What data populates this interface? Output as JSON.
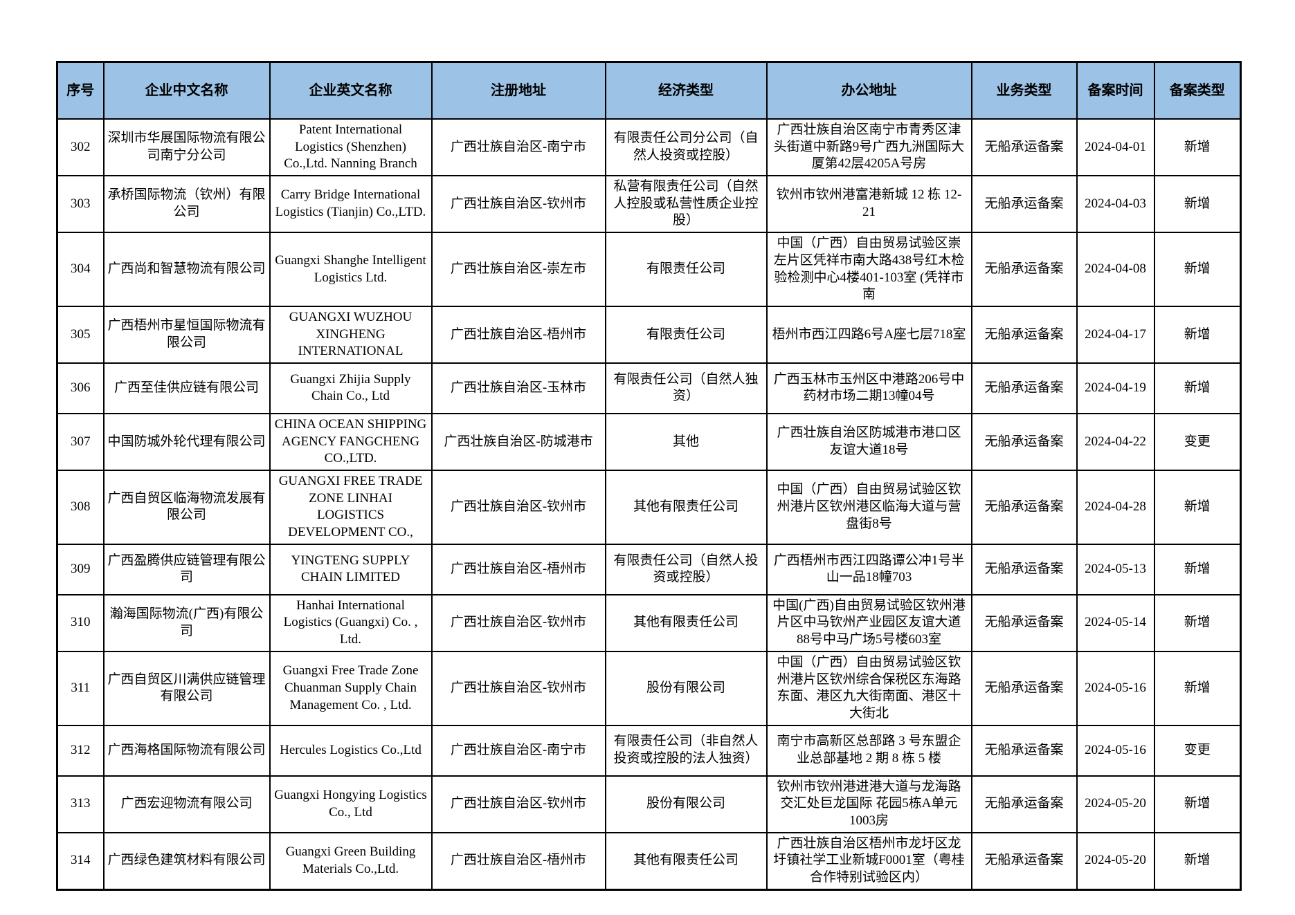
{
  "colors": {
    "header_bg": "#9CC2E5",
    "border": "#000000",
    "text": "#000000",
    "page_bg": "#FFFFFF"
  },
  "table": {
    "columns": [
      {
        "key": "index",
        "label": "序号"
      },
      {
        "key": "cn-name",
        "label": "企业中文名称"
      },
      {
        "key": "en-name",
        "label": "企业英文名称"
      },
      {
        "key": "registered-address",
        "label": "注册地址"
      },
      {
        "key": "economic-type",
        "label": "经济类型"
      },
      {
        "key": "office-address",
        "label": "办公地址"
      },
      {
        "key": "business-type",
        "label": "业务类型"
      },
      {
        "key": "record-date",
        "label": "备案时间"
      },
      {
        "key": "record-type",
        "label": "备案类型"
      }
    ],
    "rows": [
      [
        "302",
        "深圳市华展国际物流有限公司南宁分公司",
        "Patent International Logistics (Shenzhen) Co.,Ltd. Nanning Branch",
        "广西壮族自治区-南宁市",
        "有限责任公司分公司（自然人投资或控股）",
        "广西壮族自治区南宁市青秀区津头街道中新路9号广西九洲国际大厦第42层4205A号房",
        "无船承运备案",
        "2024-04-01",
        "新增"
      ],
      [
        "303",
        "承桥国际物流（钦州）有限公司",
        "Carry Bridge International Logistics (Tianjin) Co.,LTD.",
        "广西壮族自治区-钦州市",
        "私营有限责任公司（自然人控股或私营性质企业控股）",
        "钦州市钦州港富港新城 12 栋 12-21",
        "无船承运备案",
        "2024-04-03",
        "新增"
      ],
      [
        "304",
        "广西尚和智慧物流有限公司",
        "Guangxi Shanghe Intelligent Logistics Ltd.",
        "广西壮族自治区-崇左市",
        "有限责任公司",
        "中国（广西）自由贸易试验区崇左片区凭祥市南大路438号红木检验检测中心4楼401-103室 (凭祥市南",
        "无船承运备案",
        "2024-04-08",
        "新增"
      ],
      [
        "305",
        "广西梧州市星恒国际物流有限公司",
        "GUANGXI WUZHOU XINGHENG INTERNATIONAL",
        "广西壮族自治区-梧州市",
        "有限责任公司",
        "梧州市西江四路6号A座七层718室",
        "无船承运备案",
        "2024-04-17",
        "新增"
      ],
      [
        "306",
        "广西至佳供应链有限公司",
        "Guangxi Zhijia Supply Chain Co., Ltd",
        "广西壮族自治区-玉林市",
        "有限责任公司（自然人独资）",
        "广西玉林市玉州区中港路206号中药材市场二期13幢04号",
        "无船承运备案",
        "2024-04-19",
        "新增"
      ],
      [
        "307",
        "中国防城外轮代理有限公司",
        "CHINA OCEAN SHIPPING AGENCY FANGCHENG CO.,LTD.",
        "广西壮族自治区-防城港市",
        "其他",
        "广西壮族自治区防城港市港口区友谊大道18号",
        "无船承运备案",
        "2024-04-22",
        "变更"
      ],
      [
        "308",
        "广西自贸区临海物流发展有限公司",
        "GUANGXI FREE TRADE ZONE LINHAI LOGISTICS DEVELOPMENT CO.,",
        "广西壮族自治区-钦州市",
        "其他有限责任公司",
        "中国（广西）自由贸易试验区钦州港片区钦州港区临海大道与营盘街8号",
        "无船承运备案",
        "2024-04-28",
        "新增"
      ],
      [
        "309",
        "广西盈腾供应链管理有限公司",
        "YINGTENG SUPPLY CHAIN LIMITED",
        "广西壮族自治区-梧州市",
        "有限责任公司（自然人投资或控股）",
        "广西梧州市西江四路谭公冲1号半山一品18幢703",
        "无船承运备案",
        "2024-05-13",
        "新增"
      ],
      [
        "310",
        "瀚海国际物流(广西)有限公司",
        "Hanhai International Logistics (Guangxi) Co. , Ltd.",
        "广西壮族自治区-钦州市",
        "其他有限责任公司",
        "中国(广西)自由贸易试验区钦州港片区中马钦州产业园区友谊大道88号中马广场5号楼603室",
        "无船承运备案",
        "2024-05-14",
        "新增"
      ],
      [
        "311",
        "广西自贸区川满供应链管理有限公司",
        "Guangxi Free Trade Zone Chuanman Supply Chain Management Co. , Ltd.",
        "广西壮族自治区-钦州市",
        "股份有限公司",
        "中国（广西）自由贸易试验区钦州港片区钦州综合保税区东海路东面、港区九大街南面、港区十大街北",
        "无船承运备案",
        "2024-05-16",
        "新增"
      ],
      [
        "312",
        "广西海格国际物流有限公司",
        "Hercules Logistics Co.,Ltd",
        "广西壮族自治区-南宁市",
        "有限责任公司（非自然人投资或控股的法人独资）",
        "南宁市高新区总部路 3 号东盟企业总部基地 2 期 8 栋 5 楼",
        "无船承运备案",
        "2024-05-16",
        "变更"
      ],
      [
        "313",
        "广西宏迎物流有限公司",
        "Guangxi Hongying Logistics Co., Ltd",
        "广西壮族自治区-钦州市",
        "股份有限公司",
        "钦州市钦州港进港大道与龙海路交汇处巨龙国际 花园5栋A单元1003房",
        "无船承运备案",
        "2024-05-20",
        "新增"
      ],
      [
        "314",
        "广西绿色建筑材料有限公司",
        "Guangxi Green Building Materials Co.,Ltd.",
        "广西壮族自治区-梧州市",
        "其他有限责任公司",
        "广西壮族自治区梧州市龙圩区龙圩镇社学工业新城F0001室（粤桂合作特别试验区内）",
        "无船承运备案",
        "2024-05-20",
        "新增"
      ]
    ]
  }
}
